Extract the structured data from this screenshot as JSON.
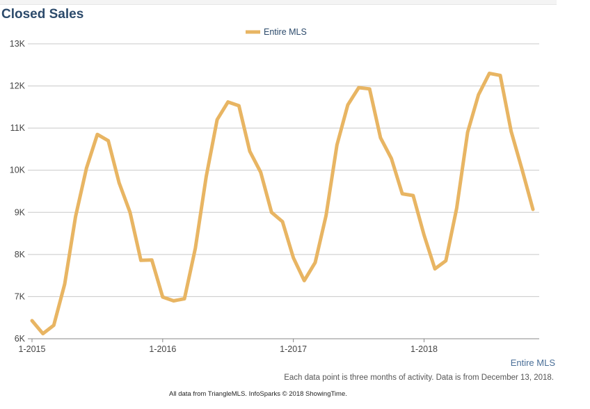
{
  "chart_data": {
    "type": "line",
    "title": "Closed Sales",
    "xlabel": "",
    "ylabel": "",
    "ylim": [
      6000,
      13000
    ],
    "y_ticks": [
      "6K",
      "7K",
      "8K",
      "9K",
      "10K",
      "11K",
      "12K",
      "13K"
    ],
    "x_ticks": [
      "1-2015",
      "1-2016",
      "1-2017",
      "1-2018"
    ],
    "grid": true,
    "legend": {
      "position": "top-center",
      "entries": [
        "Entire MLS"
      ]
    },
    "colors": {
      "line": "#e8b563",
      "grid": "#c8c8c8",
      "axis": "#888888"
    },
    "x": [
      "1-2015",
      "2-2015",
      "3-2015",
      "4-2015",
      "5-2015",
      "6-2015",
      "7-2015",
      "8-2015",
      "9-2015",
      "10-2015",
      "11-2015",
      "12-2015",
      "1-2016",
      "2-2016",
      "3-2016",
      "4-2016",
      "5-2016",
      "6-2016",
      "7-2016",
      "8-2016",
      "9-2016",
      "10-2016",
      "11-2016",
      "12-2016",
      "1-2017",
      "2-2017",
      "3-2017",
      "4-2017",
      "5-2017",
      "6-2017",
      "7-2017",
      "8-2017",
      "9-2017",
      "10-2017",
      "11-2017",
      "12-2017",
      "1-2018",
      "2-2018",
      "3-2018",
      "4-2018",
      "5-2018",
      "6-2018",
      "7-2018",
      "8-2018",
      "9-2018",
      "10-2018",
      "11-2018"
    ],
    "series": [
      {
        "name": "Entire MLS",
        "values": [
          6430,
          6120,
          6320,
          7300,
          8900,
          10050,
          10850,
          10700,
          9700,
          9000,
          7860,
          7870,
          6990,
          6900,
          6950,
          8150,
          9850,
          11200,
          11620,
          11530,
          10450,
          9950,
          9000,
          8780,
          7920,
          7380,
          7810,
          8920,
          10600,
          11550,
          11960,
          11930,
          10770,
          10280,
          9440,
          9400,
          8460,
          7660,
          7850,
          9100,
          10900,
          11790,
          12300,
          12250,
          10920,
          10020,
          9070
        ]
      }
    ]
  },
  "labels": {
    "series_label": "Entire MLS",
    "note": "Each data point is three months of activity. Data is from December 13, 2018.",
    "footer": "All data from TriangleMLS. InfoSparks © 2018 ShowingTime."
  }
}
